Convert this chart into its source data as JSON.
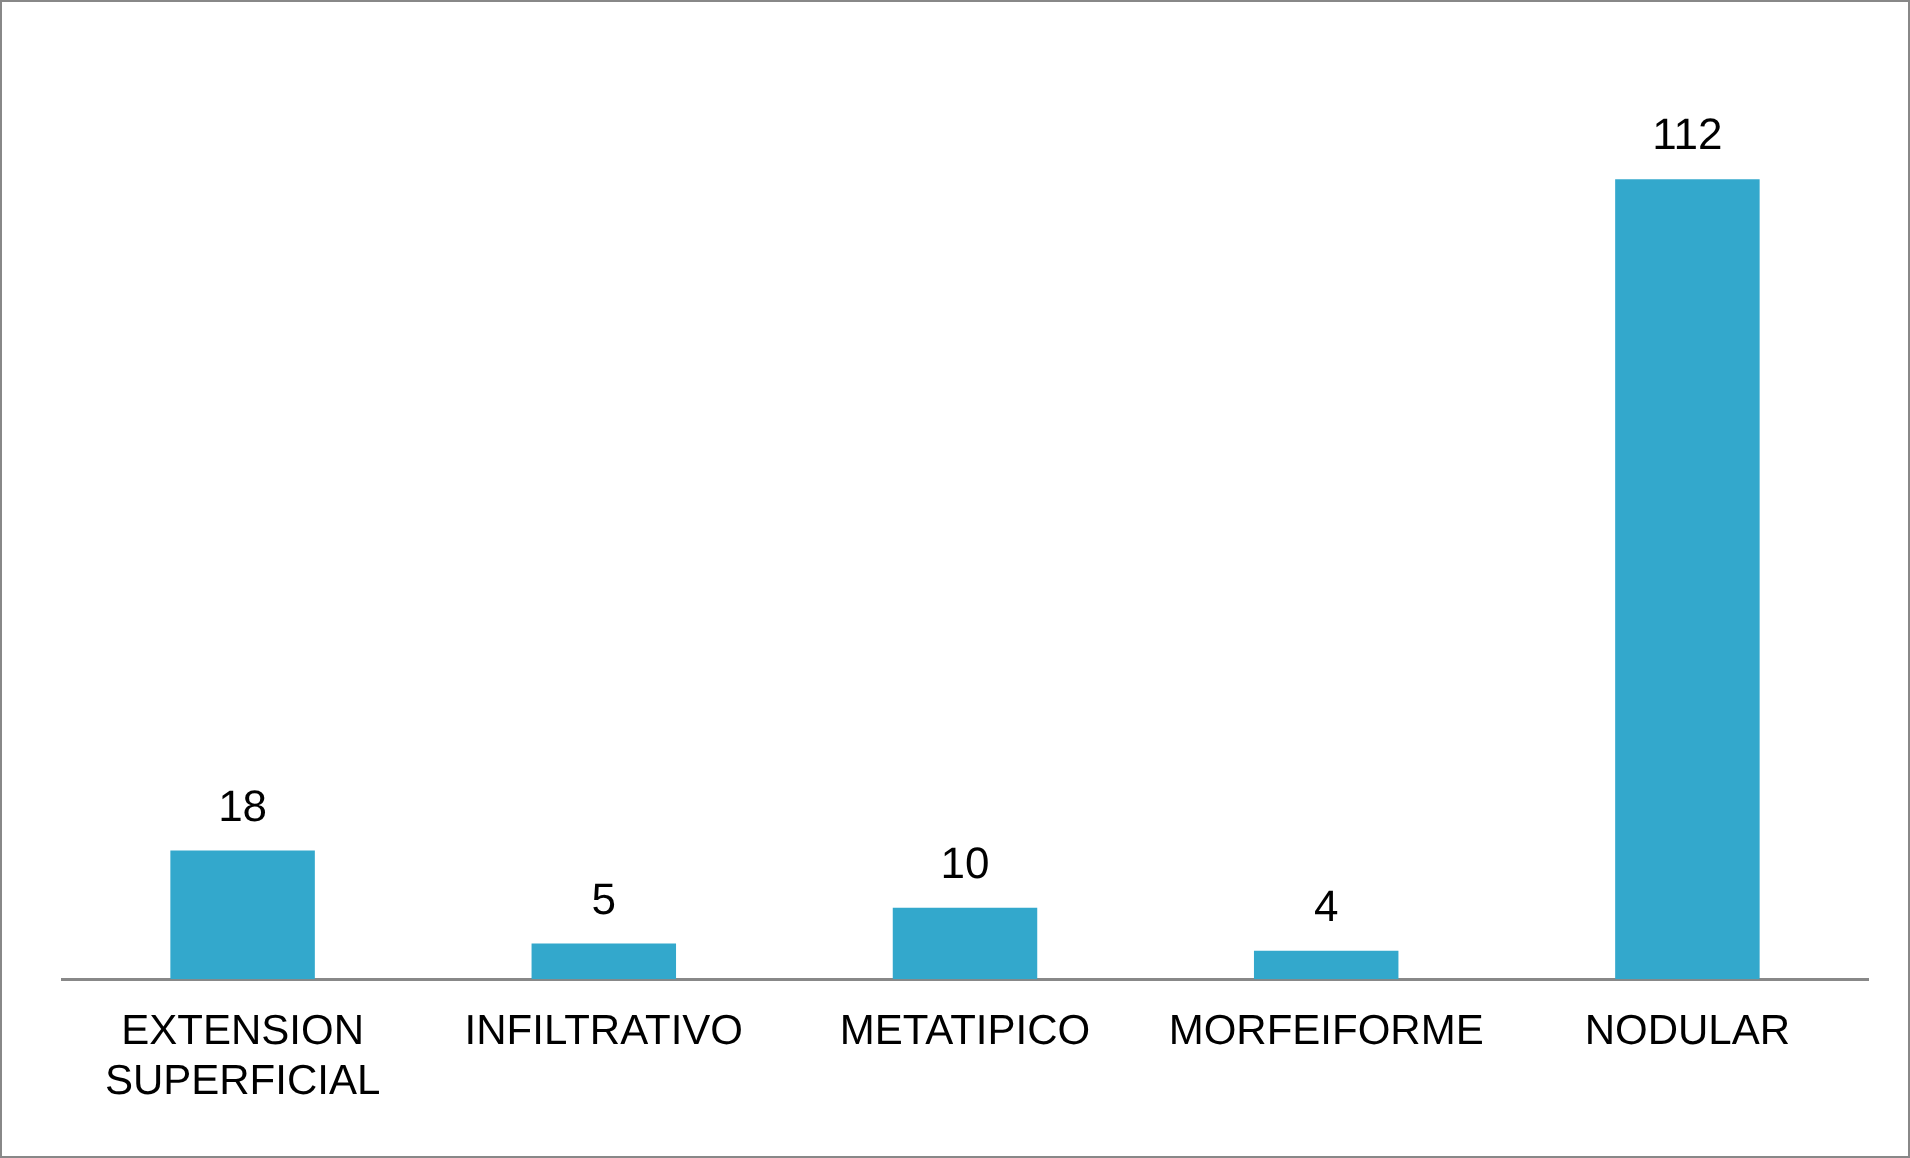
{
  "chart_data": {
    "type": "bar",
    "categories": [
      [
        "EXTENSION",
        "SUPERFICIAL"
      ],
      "INFILTRATIVO",
      "METATIPICO",
      "MORFEIFORME",
      "NODULAR"
    ],
    "values": [
      18,
      5,
      10,
      4,
      112
    ],
    "color": "#33a8cc",
    "data_labels": true,
    "grid": false,
    "legend": false,
    "tick_labels": "x"
  }
}
